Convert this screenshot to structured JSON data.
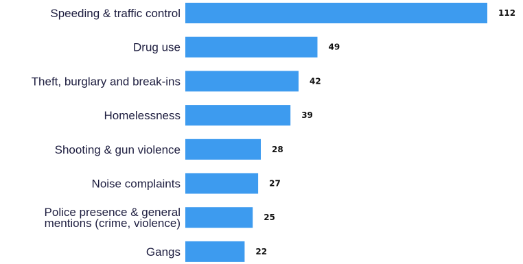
{
  "chart_data": {
    "type": "bar",
    "orientation": "horizontal",
    "categories": [
      "Speeding & traffic control",
      "Drug use",
      "Theft, burglary and break-ins",
      "Homelessness",
      "Shooting & gun violence",
      "Noise complaints",
      "Police presence & general\nmentions (crime, violence)",
      "Gangs"
    ],
    "values": [
      112,
      49,
      42,
      39,
      28,
      27,
      25,
      22
    ],
    "data_labels": [
      "112",
      "49",
      "42",
      "39",
      "28",
      "27",
      "25",
      "22"
    ],
    "title": "",
    "xlabel": "",
    "ylabel": "",
    "xlim": [
      0,
      112
    ],
    "bar_color": "#3d9bef",
    "grid": false,
    "legend": "none"
  }
}
